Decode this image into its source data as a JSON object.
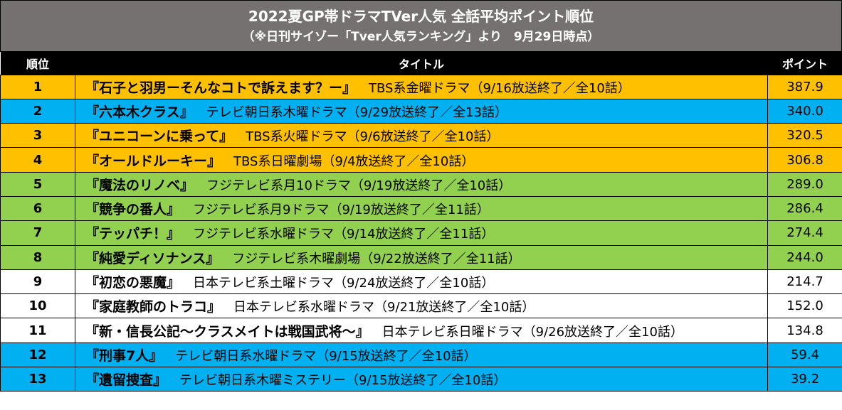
{
  "header": {
    "title": "2022夏GP帯ドラマTVer人気 全話平均ポイント順位",
    "subtitle": "（※日刊サイゾー「Tver人気ランキング」より　9月29日時点）"
  },
  "table": {
    "columns": [
      "順位",
      "タイトル",
      "ポイント"
    ],
    "colors": {
      "orange": "#ffc000",
      "blue": "#00b0f0",
      "green": "#92d050",
      "white": "#ffffff",
      "header": "#767171"
    },
    "rows": [
      {
        "rank": "1",
        "name": "『石子と羽男ーそんなコトで訴えます？ー』",
        "info": "TBS系金曜ドラマ（9/16放送終了／全10話）",
        "point": "387.9",
        "color": "orange"
      },
      {
        "rank": "2",
        "name": "『六本木クラス』",
        "info": "テレビ朝日系木曜ドラマ（9/29放送終了／全13話）",
        "point": "340.0",
        "color": "blue"
      },
      {
        "rank": "3",
        "name": "『ユニコーンに乗って』",
        "info": "TBS系火曜ドラマ（9/6放送終了／全10話）",
        "point": "320.5",
        "color": "orange"
      },
      {
        "rank": "4",
        "name": "『オールドルーキー』",
        "info": "TBS系日曜劇場（9/4放送終了／全10話）",
        "point": "306.8",
        "color": "orange"
      },
      {
        "rank": "5",
        "name": "『魔法のリノベ』",
        "info": "フジテレビ系月10ドラマ（9/19放送終了／全10話）",
        "point": "289.0",
        "color": "green"
      },
      {
        "rank": "6",
        "name": "『競争の番人』",
        "info": "フジテレビ系月9ドラマ（9/19放送終了／全11話）",
        "point": "286.4",
        "color": "green"
      },
      {
        "rank": "7",
        "name": "『テッパチ！』",
        "info": "フジテレビ系水曜ドラマ（9/14放送終了／全11話）",
        "point": "274.4",
        "color": "green"
      },
      {
        "rank": "8",
        "name": "『純愛ディソナンス』",
        "info": "フジテレビ系木曜劇場（9/22放送終了／全11話）",
        "point": "244.0",
        "color": "green"
      },
      {
        "rank": "9",
        "name": "『初恋の悪魔』",
        "info": "日本テレビ系土曜ドラマ（9/24放送終了／全10話）",
        "point": "214.7",
        "color": "white"
      },
      {
        "rank": "10",
        "name": "『家庭教師のトラコ』",
        "info": "日本テレビ系水曜ドラマ（9/21放送終了／全10話）",
        "point": "152.0",
        "color": "white"
      },
      {
        "rank": "11",
        "name": "『新・信長公記〜クラスメイトは戦国武将〜』",
        "info": "日本テレビ系日曜ドラマ（9/26放送終了／全10話）",
        "point": "134.8",
        "color": "white"
      },
      {
        "rank": "12",
        "name": "『刑事7人』",
        "info": "テレビ朝日系水曜ドラマ（9/15放送終了／全10話）",
        "point": "59.4",
        "color": "blue"
      },
      {
        "rank": "13",
        "name": "『遺留捜査』",
        "info": "テレビ朝日系木曜ミステリー（9/15放送終了／全10話）",
        "point": "39.2",
        "color": "blue"
      }
    ]
  }
}
